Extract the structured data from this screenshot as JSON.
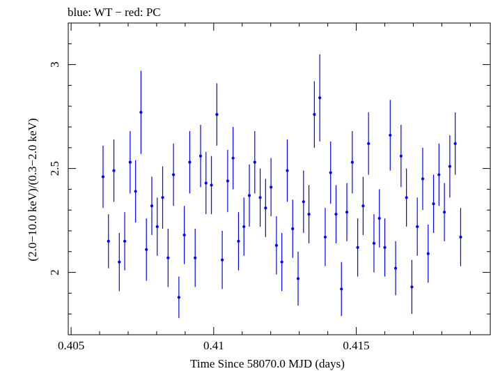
{
  "chart_data": {
    "type": "scatter",
    "title": "blue: WT − red: PC",
    "xlabel": "Time Since 58070.0 MJD (days)",
    "ylabel": "(2.0−10.0 keV)/(0.3−2.0 keV)",
    "xlim": [
      0.4049,
      0.4197
    ],
    "ylim": [
      1.7,
      3.2
    ],
    "x_ticks": [
      0.405,
      0.41,
      0.415
    ],
    "x_tick_labels": [
      "0.405",
      "0.41",
      "0.415"
    ],
    "y_ticks": [
      2,
      2.5,
      3
    ],
    "y_tick_labels": [
      "2",
      "2.5",
      "3"
    ],
    "grid": false,
    "series": [
      {
        "color": "#0000ff",
        "x": [
          0.40612,
          0.40631,
          0.4065,
          0.40669,
          0.40688,
          0.40707,
          0.40726,
          0.40745,
          0.40764,
          0.40783,
          0.40802,
          0.40821,
          0.4084,
          0.40859,
          0.40878,
          0.40897,
          0.40916,
          0.40935,
          0.40954,
          0.40973,
          0.40992,
          0.41011,
          0.4103,
          0.41049,
          0.41068,
          0.41087,
          0.41106,
          0.41125,
          0.41144,
          0.41163,
          0.41182,
          0.41201,
          0.4122,
          0.41239,
          0.41258,
          0.41277,
          0.41296,
          0.41315,
          0.41334,
          0.41353,
          0.41372,
          0.41391,
          0.4141,
          0.41429,
          0.41448,
          0.41467,
          0.41486,
          0.41505,
          0.41524,
          0.41543,
          0.41562,
          0.41581,
          0.416,
          0.41619,
          0.41638,
          0.41657,
          0.41676,
          0.41695,
          0.41714,
          0.41733,
          0.41752,
          0.41771,
          0.4179,
          0.41809,
          0.41828,
          0.41847,
          0.41866
        ],
        "y": [
          2.46,
          2.15,
          2.49,
          2.05,
          2.15,
          2.53,
          2.39,
          2.77,
          2.11,
          2.32,
          2.22,
          2.36,
          2.07,
          2.47,
          1.88,
          2.18,
          2.53,
          2.07,
          2.56,
          2.43,
          2.42,
          2.76,
          2.06,
          2.44,
          2.55,
          2.15,
          2.22,
          2.37,
          2.53,
          2.36,
          2.31,
          2.41,
          2.13,
          2.05,
          2.49,
          2.21,
          1.97,
          2.34,
          2.28,
          2.76,
          2.84,
          2.17,
          2.48,
          2.28,
          1.92,
          2.29,
          2.53,
          2.12,
          2.32,
          2.62,
          2.14,
          2.26,
          2.12,
          2.66,
          2.02,
          2.56,
          2.36,
          1.93,
          2.22,
          2.45,
          2.09,
          2.33,
          2.47,
          2.29,
          2.51,
          2.62,
          2.17
        ],
        "err": [
          0.15,
          0.13,
          0.15,
          0.14,
          0.14,
          0.15,
          0.15,
          0.2,
          0.15,
          0.14,
          0.14,
          0.15,
          0.14,
          0.15,
          0.1,
          0.14,
          0.15,
          0.14,
          0.15,
          0.15,
          0.14,
          0.15,
          0.14,
          0.15,
          0.15,
          0.14,
          0.14,
          0.15,
          0.15,
          0.14,
          0.14,
          0.14,
          0.14,
          0.14,
          0.15,
          0.14,
          0.13,
          0.15,
          0.14,
          0.16,
          0.21,
          0.14,
          0.15,
          0.14,
          0.13,
          0.14,
          0.15,
          0.14,
          0.14,
          0.15,
          0.14,
          0.14,
          0.14,
          0.17,
          0.13,
          0.15,
          0.14,
          0.13,
          0.14,
          0.15,
          0.14,
          0.14,
          0.15,
          0.14,
          0.15,
          0.15,
          0.14
        ]
      }
    ]
  }
}
